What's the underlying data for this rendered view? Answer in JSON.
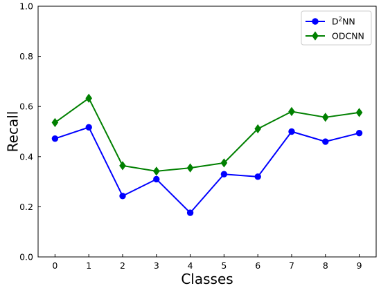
{
  "chart_data": {
    "type": "line",
    "xlabel": "Classes",
    "ylabel": "Recall",
    "x": [
      0,
      1,
      2,
      3,
      4,
      5,
      6,
      7,
      8,
      9
    ],
    "xticks": [
      "0",
      "1",
      "2",
      "3",
      "4",
      "5",
      "6",
      "7",
      "8",
      "9"
    ],
    "yticks": [
      "0.0",
      "0.2",
      "0.4",
      "0.6",
      "0.8",
      "1.0"
    ],
    "xlim": [
      -0.5,
      9.5
    ],
    "ylim": [
      0.0,
      1.0
    ],
    "grid": false,
    "legend_position": "top-right",
    "series": [
      {
        "name": "D2NN",
        "legend_base": "D",
        "legend_sup": "2",
        "legend_rest": "NN",
        "color": "#0000ff",
        "marker": "circle",
        "values": [
          0.472,
          0.517,
          0.243,
          0.31,
          0.176,
          0.33,
          0.32,
          0.5,
          0.46,
          0.494
        ]
      },
      {
        "name": "ODCNN",
        "color": "#008000",
        "marker": "diamond",
        "values": [
          0.536,
          0.633,
          0.364,
          0.342,
          0.355,
          0.375,
          0.511,
          0.58,
          0.557,
          0.576
        ]
      }
    ]
  }
}
